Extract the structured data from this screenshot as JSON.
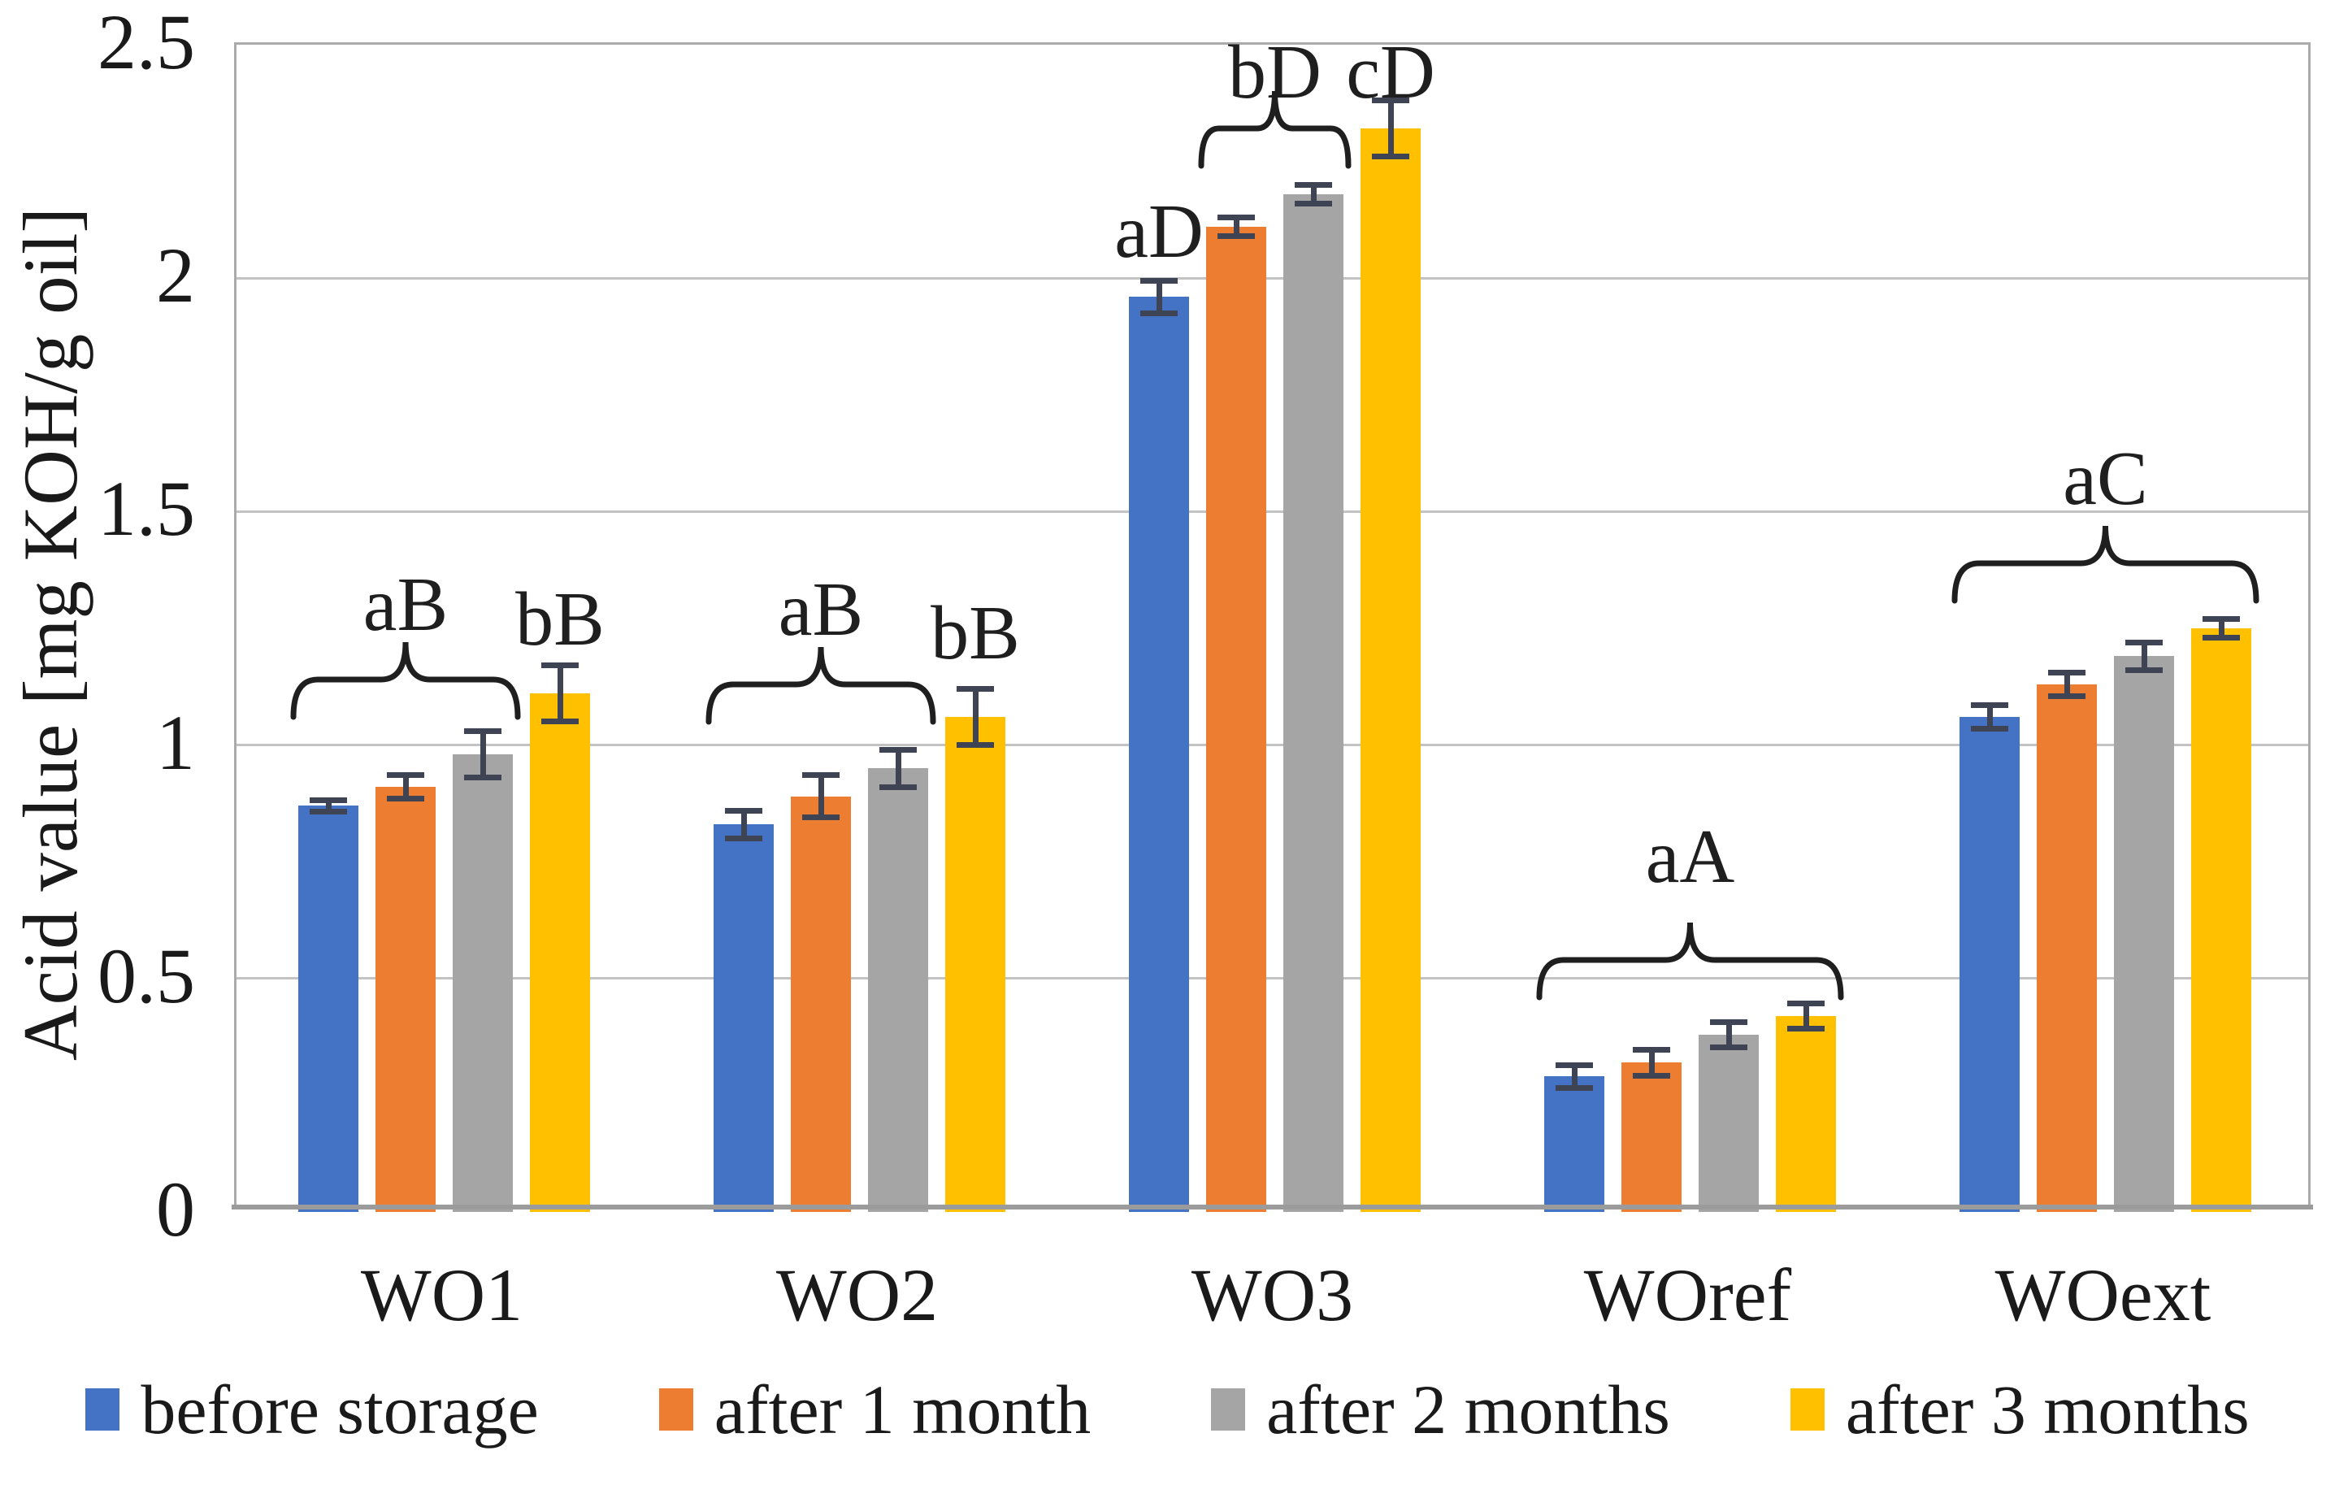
{
  "chart_data": {
    "type": "bar",
    "title": "",
    "ylabel": "Acid value [mg KOH/g oil]",
    "xlabel": "",
    "ylim": [
      0,
      2.5
    ],
    "yticks": [
      {
        "value": 0,
        "label": "0"
      },
      {
        "value": 0.5,
        "label": "0.5"
      },
      {
        "value": 1,
        "label": "1"
      },
      {
        "value": 1.5,
        "label": "1.5"
      },
      {
        "value": 2,
        "label": "2"
      },
      {
        "value": 2.5,
        "label": "2.5"
      }
    ],
    "grid": true,
    "legend_position": "bottom",
    "categories": [
      "WO1",
      "WO2",
      "WO3",
      "WOref",
      "WOext"
    ],
    "series": [
      {
        "name": "before storage",
        "color": "#4472C4",
        "values": [
          0.87,
          0.83,
          1.96,
          0.29,
          1.06
        ],
        "errors": [
          0.012,
          0.03,
          0.035,
          0.025,
          0.025
        ]
      },
      {
        "name": "after 1 month",
        "color": "#ED7D31",
        "values": [
          0.91,
          0.89,
          2.11,
          0.32,
          1.13
        ],
        "errors": [
          0.025,
          0.045,
          0.02,
          0.028,
          0.025
        ]
      },
      {
        "name": "after 2 months",
        "color": "#A5A5A5",
        "values": [
          0.98,
          0.95,
          2.18,
          0.38,
          1.19
        ],
        "errors": [
          0.05,
          0.04,
          0.02,
          0.027,
          0.03
        ]
      },
      {
        "name": "after 3 months",
        "color": "#FFC000",
        "values": [
          1.11,
          1.06,
          2.32,
          0.42,
          1.25
        ],
        "errors": [
          0.06,
          0.06,
          0.06,
          0.027,
          0.02
        ]
      }
    ],
    "error_bar_color": "#3F4455",
    "annotation_color": "#1f1f1f",
    "annotations": [
      {
        "category": "WO1",
        "type": "brace",
        "bars": [
          0,
          2
        ],
        "label": "aB",
        "brace_bottom": 1.06,
        "label_y": 1.3
      },
      {
        "category": "WO1",
        "type": "label",
        "bars": [
          3,
          3
        ],
        "label": "bB",
        "label_y": 1.27
      },
      {
        "category": "WO2",
        "type": "brace",
        "bars": [
          0,
          2
        ],
        "label": "aB",
        "brace_bottom": 1.05,
        "label_y": 1.29
      },
      {
        "category": "WO2",
        "type": "label",
        "bars": [
          3,
          3
        ],
        "label": "bB",
        "label_y": 1.24
      },
      {
        "category": "WO3",
        "type": "label",
        "bars": [
          0,
          0
        ],
        "label": "aD",
        "label_y": 2.1
      },
      {
        "category": "WO3",
        "type": "brace",
        "bars": [
          1,
          2
        ],
        "label": "bD",
        "brace_bottom": 2.24,
        "label_y": 2.44
      },
      {
        "category": "WO3",
        "type": "label",
        "bars": [
          3,
          3
        ],
        "label": "cD",
        "label_y": 2.44
      },
      {
        "category": "WOref",
        "type": "brace",
        "bars": [
          0,
          3
        ],
        "label": "aA",
        "brace_bottom": 0.46,
        "label_y": 0.76
      },
      {
        "category": "WOext",
        "type": "brace",
        "bars": [
          0,
          3
        ],
        "label": "aC",
        "brace_bottom": 1.31,
        "label_y": 1.57
      }
    ]
  }
}
